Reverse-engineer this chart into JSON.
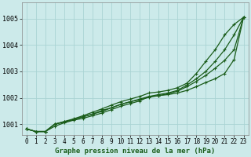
{
  "xlabel": "Graphe pression niveau de la mer (hPa)",
  "bg_color": "#cceaea",
  "grid_color": "#aad4d4",
  "line_color": "#1a5c1a",
  "ylim": [
    1000.6,
    1005.6
  ],
  "xlim": [
    -0.5,
    23.5
  ],
  "yticks": [
    1001,
    1002,
    1003,
    1004,
    1005
  ],
  "xticks": [
    0,
    1,
    2,
    3,
    4,
    5,
    6,
    7,
    8,
    9,
    10,
    11,
    12,
    13,
    14,
    15,
    16,
    17,
    18,
    19,
    20,
    21,
    22,
    23
  ],
  "series": [
    [
      1000.82,
      1000.72,
      1000.72,
      1000.92,
      1001.05,
      1001.15,
      1001.22,
      1001.32,
      1001.42,
      1001.55,
      1001.68,
      1001.78,
      1001.88,
      1002.05,
      1002.08,
      1002.12,
      1002.18,
      1002.28,
      1002.42,
      1002.58,
      1002.72,
      1002.92,
      1003.45,
      1005.05
    ],
    [
      1000.82,
      1000.72,
      1000.72,
      1001.0,
      1001.08,
      1001.18,
      1001.28,
      1001.38,
      1001.48,
      1001.62,
      1001.75,
      1001.85,
      1001.92,
      1002.02,
      1002.08,
      1002.15,
      1002.25,
      1002.42,
      1002.62,
      1002.85,
      1003.12,
      1003.42,
      1003.82,
      1005.05
    ],
    [
      1000.82,
      1000.72,
      1000.72,
      1001.0,
      1001.08,
      1001.18,
      1001.28,
      1001.38,
      1001.52,
      1001.62,
      1001.75,
      1001.85,
      1001.95,
      1002.05,
      1002.12,
      1002.18,
      1002.28,
      1002.48,
      1002.72,
      1003.0,
      1003.38,
      1003.82,
      1004.38,
      1005.05
    ],
    [
      1000.82,
      1000.72,
      1000.72,
      1001.0,
      1001.1,
      1001.2,
      1001.32,
      1001.45,
      1001.58,
      1001.72,
      1001.85,
      1001.95,
      1002.05,
      1002.18,
      1002.22,
      1002.28,
      1002.38,
      1002.55,
      1002.92,
      1003.38,
      1003.82,
      1004.38,
      1004.78,
      1005.05
    ]
  ]
}
